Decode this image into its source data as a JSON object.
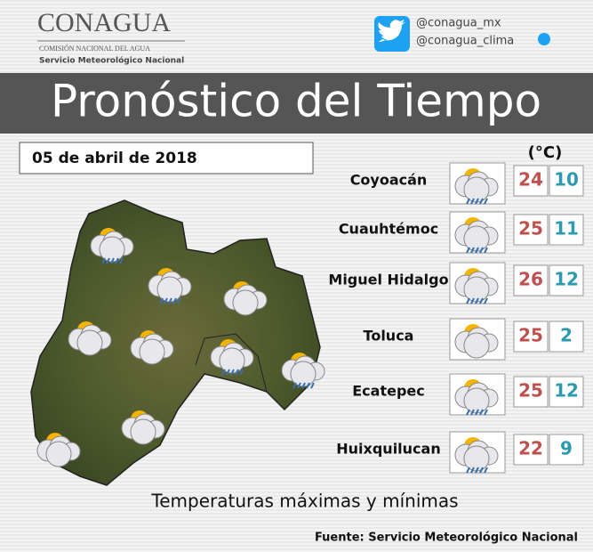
{
  "header": {
    "logo": "CONAGUA",
    "agency": "COMISIÓN NACIONAL DEL AGUA",
    "service": "Servicio Meteorológico Nacional",
    "twitter": [
      "@conagua_mx",
      "@conagua_clima"
    ],
    "title": "Pronóstico del Tiempo"
  },
  "date": "05 de abril de 2018",
  "table": {
    "unit": "(°C)",
    "rows": [
      {
        "city": "Coyoacán",
        "max": 24,
        "min": 10
      },
      {
        "city": "Cuauhtémoc",
        "max": 25,
        "min": 11
      },
      {
        "city": "Miguel Hidalgo",
        "max": 26,
        "min": 12
      },
      {
        "city": "Toluca",
        "max": 25,
        "min": 2
      },
      {
        "city": "Ecatepec",
        "max": 25,
        "min": 12
      },
      {
        "city": "Huixquilucan",
        "max": 22,
        "min": 9
      }
    ]
  },
  "footer": {
    "caption": "Temperaturas máximas y mínimas",
    "source": "Fuente: Servicio Meteorológico Nacional"
  }
}
